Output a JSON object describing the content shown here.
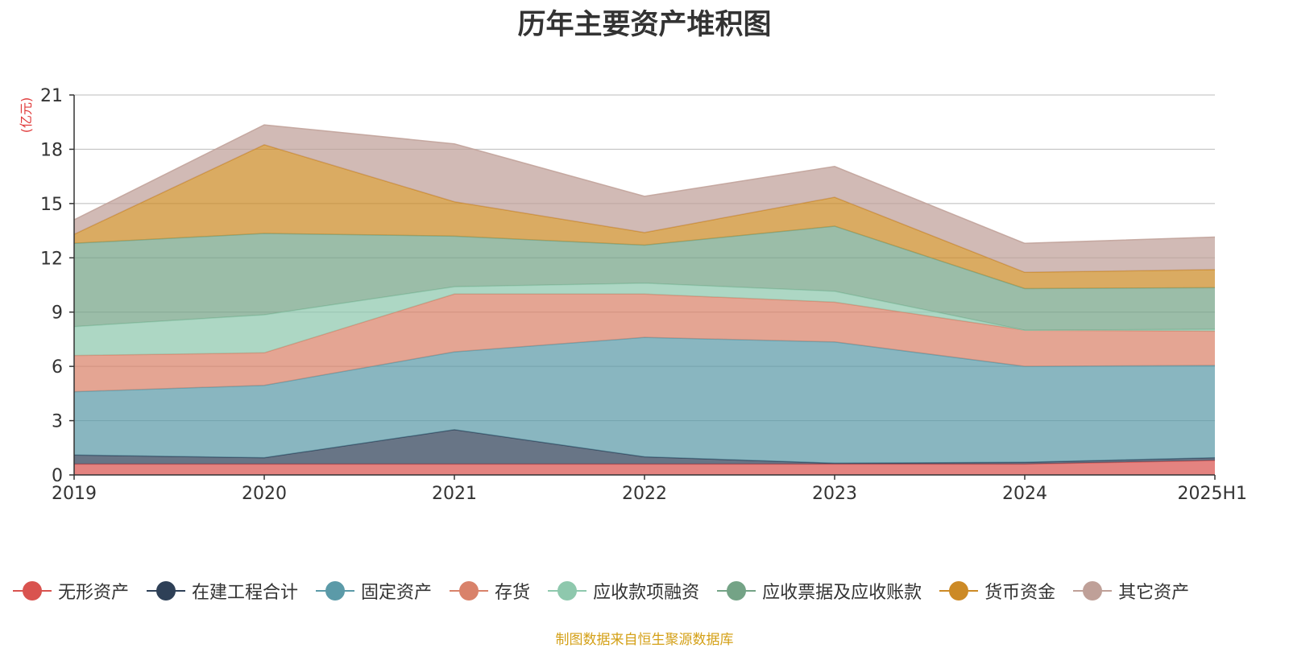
{
  "chart_data": {
    "type": "area",
    "stacked": true,
    "title": "历年主要资产堆积图",
    "ylabel": "(亿元)",
    "xlabel": "",
    "categories": [
      "2019",
      "2020",
      "2021",
      "2022",
      "2023",
      "2024",
      "2025H1"
    ],
    "ylim": [
      0,
      21
    ],
    "yticks": [
      0,
      3,
      6,
      9,
      12,
      15,
      18,
      21
    ],
    "grid": true,
    "legend_position": "bottom",
    "series": [
      {
        "name": "无形资产",
        "color": "#d9534f",
        "values": [
          0.6,
          0.6,
          0.6,
          0.6,
          0.6,
          0.6,
          0.8
        ]
      },
      {
        "name": "在建工程合计",
        "color": "#2e4057",
        "values": [
          0.5,
          0.35,
          1.9,
          0.4,
          0.05,
          0.1,
          0.15
        ]
      },
      {
        "name": "固定资产",
        "color": "#5b9aa8",
        "values": [
          3.5,
          4.0,
          4.3,
          6.6,
          6.7,
          5.3,
          5.1
        ]
      },
      {
        "name": "存货",
        "color": "#d9826a",
        "values": [
          2.0,
          1.8,
          3.2,
          2.4,
          2.2,
          2.0,
          1.9
        ]
      },
      {
        "name": "应收款项融资",
        "color": "#8ec8ad",
        "values": [
          1.6,
          2.1,
          0.4,
          0.6,
          0.6,
          0.0,
          0.1
        ]
      },
      {
        "name": "应收票据及应收账款",
        "color": "#74a386",
        "values": [
          4.6,
          4.5,
          2.8,
          2.1,
          3.6,
          2.3,
          2.3
        ]
      },
      {
        "name": "货币资金",
        "color": "#cc8a26",
        "values": [
          0.5,
          4.9,
          1.9,
          0.7,
          1.6,
          0.9,
          1.0
        ]
      },
      {
        "name": "其它资产",
        "color": "#bfa098",
        "values": [
          0.8,
          1.1,
          3.2,
          2.0,
          1.7,
          1.6,
          1.8
        ]
      }
    ]
  },
  "source_note": "制图数据来自恒生聚源数据库"
}
